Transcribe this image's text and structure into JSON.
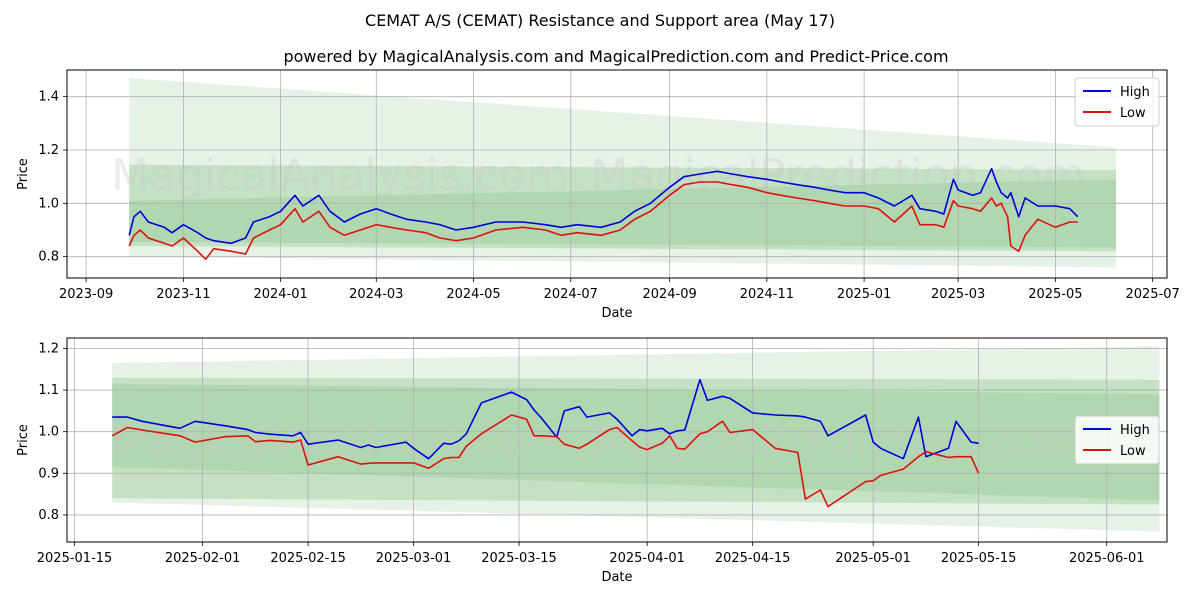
{
  "title": "CEMAT A/S (CEMAT) Resistance and Support area (May 17)",
  "subtitle": "powered by MagicalAnalysis.com and MagicalPrediction.com and Predict-Price.com",
  "watermark": {
    "left": "MagicalAnalysis.com",
    "right": "MagicalPrediction.com"
  },
  "colors": {
    "high": "#0000dd",
    "low": "#dd1111",
    "band_light": "#e3f0e3",
    "band_mid": "#b8dbb8",
    "band_dark": "#a3d0a3",
    "grid": "#b0b0b0"
  },
  "chart_data": [
    {
      "type": "line",
      "title": "",
      "xlabel": "Date",
      "ylabel": "Price",
      "xlim": [
        "2023-08-20",
        "2025-07-10"
      ],
      "ylim": [
        0.72,
        1.5
      ],
      "yticks": [
        0.8,
        1.0,
        1.2,
        1.4
      ],
      "ytick_labels": [
        "0.8",
        "1.0",
        "1.2",
        "1.4"
      ],
      "xticks": [
        "2023-09-01",
        "2023-11-01",
        "2024-01-01",
        "2024-03-01",
        "2024-05-01",
        "2024-07-01",
        "2024-09-01",
        "2024-11-01",
        "2025-01-01",
        "2025-03-01",
        "2025-05-01",
        "2025-07-01"
      ],
      "xtick_labels": [
        "2023-09",
        "2023-11",
        "2024-01",
        "2024-03",
        "2024-05",
        "2024-07",
        "2024-09",
        "2024-11",
        "2025-01",
        "2025-03",
        "2025-05",
        "2025-07"
      ],
      "legend": {
        "position": "top-right",
        "entries": [
          "High",
          "Low"
        ]
      },
      "bands": [
        {
          "x": [
            "2023-09-28",
            "2025-06-08"
          ],
          "upper": [
            1.47,
            1.21
          ],
          "lower": [
            0.8,
            0.76
          ],
          "shade": "light"
        },
        {
          "x": [
            "2023-09-28",
            "2025-06-08"
          ],
          "upper": [
            1.145,
            1.125
          ],
          "lower": [
            0.84,
            0.82
          ],
          "shade": "mid"
        },
        {
          "x": [
            "2023-09-28",
            "2025-06-08"
          ],
          "upper": [
            1.01,
            1.09
          ],
          "lower": [
            0.855,
            0.835
          ],
          "shade": "dark"
        }
      ],
      "series": [
        {
          "name": "High",
          "x": [
            "2023-09-28",
            "2023-10-01",
            "2023-10-05",
            "2023-10-10",
            "2023-10-20",
            "2023-10-25",
            "2023-11-01",
            "2023-11-10",
            "2023-11-15",
            "2023-11-20",
            "2023-12-01",
            "2023-12-10",
            "2023-12-15",
            "2023-12-25",
            "2024-01-01",
            "2024-01-10",
            "2024-01-15",
            "2024-01-25",
            "2024-02-01",
            "2024-02-10",
            "2024-02-20",
            "2024-03-01",
            "2024-03-10",
            "2024-03-20",
            "2024-04-01",
            "2024-04-10",
            "2024-04-20",
            "2024-05-01",
            "2024-05-15",
            "2024-06-01",
            "2024-06-15",
            "2024-06-25",
            "2024-07-05",
            "2024-07-20",
            "2024-08-01",
            "2024-08-10",
            "2024-08-20",
            "2024-09-01",
            "2024-09-10",
            "2024-09-20",
            "2024-10-01",
            "2024-10-10",
            "2024-10-20",
            "2024-11-01",
            "2024-11-10",
            "2024-11-20",
            "2024-12-01",
            "2024-12-10",
            "2024-12-20",
            "2025-01-01",
            "2025-01-10",
            "2025-01-20",
            "2025-01-31",
            "2025-02-05",
            "2025-02-15",
            "2025-02-20",
            "2025-02-26",
            "2025-03-01",
            "2025-03-10",
            "2025-03-15",
            "2025-03-22",
            "2025-03-25",
            "2025-03-28",
            "2025-04-01",
            "2025-04-03",
            "2025-04-08",
            "2025-04-12",
            "2025-04-20",
            "2025-05-01",
            "2025-05-10",
            "2025-05-15"
          ],
          "values": [
            0.88,
            0.95,
            0.97,
            0.93,
            0.91,
            0.89,
            0.92,
            0.89,
            0.87,
            0.86,
            0.85,
            0.87,
            0.93,
            0.95,
            0.97,
            1.03,
            0.99,
            1.03,
            0.97,
            0.93,
            0.96,
            0.98,
            0.96,
            0.94,
            0.93,
            0.92,
            0.9,
            0.91,
            0.93,
            0.93,
            0.92,
            0.91,
            0.92,
            0.91,
            0.93,
            0.97,
            1.0,
            1.06,
            1.1,
            1.11,
            1.12,
            1.11,
            1.1,
            1.09,
            1.08,
            1.07,
            1.06,
            1.05,
            1.04,
            1.04,
            1.02,
            0.99,
            1.03,
            0.98,
            0.97,
            0.96,
            1.09,
            1.05,
            1.03,
            1.04,
            1.13,
            1.08,
            1.04,
            1.02,
            1.04,
            0.95,
            1.02,
            0.99,
            0.99,
            0.98,
            0.95
          ]
        },
        {
          "name": "Low",
          "x": [
            "2023-09-28",
            "2023-10-01",
            "2023-10-05",
            "2023-10-10",
            "2023-10-20",
            "2023-10-25",
            "2023-11-01",
            "2023-11-10",
            "2023-11-15",
            "2023-11-20",
            "2023-12-01",
            "2023-12-10",
            "2023-12-15",
            "2023-12-25",
            "2024-01-01",
            "2024-01-10",
            "2024-01-15",
            "2024-01-25",
            "2024-02-01",
            "2024-02-10",
            "2024-02-20",
            "2024-03-01",
            "2024-03-10",
            "2024-03-20",
            "2024-04-01",
            "2024-04-10",
            "2024-04-20",
            "2024-05-01",
            "2024-05-15",
            "2024-06-01",
            "2024-06-15",
            "2024-06-25",
            "2024-07-05",
            "2024-07-20",
            "2024-08-01",
            "2024-08-10",
            "2024-08-20",
            "2024-09-01",
            "2024-09-10",
            "2024-09-20",
            "2024-10-01",
            "2024-10-10",
            "2024-10-20",
            "2024-11-01",
            "2024-11-10",
            "2024-11-20",
            "2024-12-01",
            "2024-12-10",
            "2024-12-20",
            "2025-01-01",
            "2025-01-10",
            "2025-01-20",
            "2025-01-31",
            "2025-02-05",
            "2025-02-15",
            "2025-02-20",
            "2025-02-26",
            "2025-03-01",
            "2025-03-10",
            "2025-03-15",
            "2025-03-22",
            "2025-03-25",
            "2025-03-28",
            "2025-04-01",
            "2025-04-03",
            "2025-04-08",
            "2025-04-12",
            "2025-04-20",
            "2025-05-01",
            "2025-05-10",
            "2025-05-15"
          ],
          "values": [
            0.84,
            0.88,
            0.9,
            0.87,
            0.85,
            0.84,
            0.87,
            0.82,
            0.79,
            0.83,
            0.82,
            0.81,
            0.87,
            0.9,
            0.92,
            0.98,
            0.93,
            0.97,
            0.91,
            0.88,
            0.9,
            0.92,
            0.91,
            0.9,
            0.89,
            0.87,
            0.86,
            0.87,
            0.9,
            0.91,
            0.9,
            0.88,
            0.89,
            0.88,
            0.9,
            0.94,
            0.97,
            1.03,
            1.07,
            1.08,
            1.08,
            1.07,
            1.06,
            1.04,
            1.03,
            1.02,
            1.01,
            1.0,
            0.99,
            0.99,
            0.98,
            0.93,
            0.99,
            0.92,
            0.92,
            0.91,
            1.01,
            0.99,
            0.98,
            0.97,
            1.02,
            0.99,
            1.0,
            0.95,
            0.84,
            0.82,
            0.88,
            0.94,
            0.91,
            0.93,
            0.93
          ]
        }
      ]
    },
    {
      "type": "line",
      "title": "",
      "xlabel": "Date",
      "ylabel": "Price",
      "xlim": [
        "2025-01-14",
        "2025-06-09"
      ],
      "ylim": [
        0.735,
        1.225
      ],
      "yticks": [
        0.8,
        0.9,
        1.0,
        1.1,
        1.2
      ],
      "ytick_labels": [
        "0.8",
        "0.9",
        "1.0",
        "1.1",
        "1.2"
      ],
      "xticks": [
        "2025-01-15",
        "2025-02-01",
        "2025-02-15",
        "2025-03-01",
        "2025-03-15",
        "2025-04-01",
        "2025-04-15",
        "2025-05-01",
        "2025-05-15",
        "2025-06-01"
      ],
      "xtick_labels": [
        "2025-01-15",
        "2025-02-01",
        "2025-02-15",
        "2025-03-01",
        "2025-03-15",
        "2025-04-01",
        "2025-04-15",
        "2025-05-01",
        "2025-05-15",
        "2025-06-01"
      ],
      "legend": {
        "position": "center-right",
        "entries": [
          "High",
          "Low"
        ]
      },
      "bands": [
        {
          "x": [
            "2025-01-20",
            "2025-06-08"
          ],
          "upper": [
            1.165,
            1.205
          ],
          "lower": [
            0.83,
            0.76
          ],
          "shade": "light"
        },
        {
          "x": [
            "2025-01-20",
            "2025-06-08"
          ],
          "upper": [
            1.13,
            1.125
          ],
          "lower": [
            0.84,
            0.825
          ],
          "shade": "mid"
        },
        {
          "x": [
            "2025-01-20",
            "2025-06-08"
          ],
          "upper": [
            1.115,
            1.09
          ],
          "lower": [
            0.915,
            0.835
          ],
          "shade": "dark"
        }
      ],
      "series": [
        {
          "name": "High",
          "x": [
            "2025-01-20",
            "2025-01-22",
            "2025-01-24",
            "2025-01-29",
            "2025-01-31",
            "2025-02-04",
            "2025-02-07",
            "2025-02-08",
            "2025-02-10",
            "2025-02-13",
            "2025-02-14",
            "2025-02-15",
            "2025-02-19",
            "2025-02-22",
            "2025-02-23",
            "2025-02-24",
            "2025-02-28",
            "2025-03-01",
            "2025-03-03",
            "2025-03-05",
            "2025-03-06",
            "2025-03-07",
            "2025-03-08",
            "2025-03-10",
            "2025-03-14",
            "2025-03-16",
            "2025-03-17",
            "2025-03-18",
            "2025-03-20",
            "2025-03-21",
            "2025-03-23",
            "2025-03-24",
            "2025-03-27",
            "2025-03-28",
            "2025-03-30",
            "2025-03-31",
            "2025-04-01",
            "2025-04-03",
            "2025-04-04",
            "2025-04-05",
            "2025-04-06",
            "2025-04-08",
            "2025-04-09",
            "2025-04-11",
            "2025-04-12",
            "2025-04-15",
            "2025-04-18",
            "2025-04-21",
            "2025-04-22",
            "2025-04-24",
            "2025-04-25",
            "2025-04-30",
            "2025-05-01",
            "2025-05-02",
            "2025-05-05",
            "2025-05-07",
            "2025-05-08",
            "2025-05-11",
            "2025-05-12",
            "2025-05-14",
            "2025-05-15"
          ],
          "values": [
            1.035,
            1.035,
            1.025,
            1.008,
            1.025,
            1.014,
            1.005,
            0.998,
            0.994,
            0.99,
            0.998,
            0.97,
            0.98,
            0.962,
            0.968,
            0.962,
            0.975,
            0.96,
            0.935,
            0.972,
            0.97,
            0.978,
            0.995,
            1.069,
            1.095,
            1.077,
            1.052,
            1.032,
            0.987,
            1.05,
            1.06,
            1.035,
            1.045,
            1.03,
            0.99,
            1.005,
            1.002,
            1.008,
            0.995,
            1.002,
            1.004,
            1.125,
            1.075,
            1.085,
            1.08,
            1.045,
            1.04,
            1.038,
            1.035,
            1.025,
            0.99,
            1.04,
            0.975,
            0.96,
            0.935,
            1.035,
            0.94,
            0.96,
            1.025,
            0.975,
            0.972
          ]
        },
        {
          "name": "Low",
          "x": [
            "2025-01-20",
            "2025-01-22",
            "2025-01-24",
            "2025-01-29",
            "2025-01-31",
            "2025-02-04",
            "2025-02-07",
            "2025-02-08",
            "2025-02-10",
            "2025-02-13",
            "2025-02-14",
            "2025-02-15",
            "2025-02-19",
            "2025-02-22",
            "2025-02-23",
            "2025-02-24",
            "2025-02-28",
            "2025-03-01",
            "2025-03-03",
            "2025-03-05",
            "2025-03-06",
            "2025-03-07",
            "2025-03-08",
            "2025-03-10",
            "2025-03-14",
            "2025-03-16",
            "2025-03-17",
            "2025-03-18",
            "2025-03-20",
            "2025-03-21",
            "2025-03-23",
            "2025-03-24",
            "2025-03-27",
            "2025-03-28",
            "2025-03-30",
            "2025-03-31",
            "2025-04-01",
            "2025-04-03",
            "2025-04-04",
            "2025-04-05",
            "2025-04-06",
            "2025-04-08",
            "2025-04-09",
            "2025-04-11",
            "2025-04-12",
            "2025-04-15",
            "2025-04-18",
            "2025-04-21",
            "2025-04-22",
            "2025-04-24",
            "2025-04-25",
            "2025-04-30",
            "2025-05-01",
            "2025-05-02",
            "2025-05-05",
            "2025-05-07",
            "2025-05-08",
            "2025-05-11",
            "2025-05-12",
            "2025-05-14",
            "2025-05-15"
          ],
          "values": [
            0.99,
            1.01,
            1.004,
            0.99,
            0.975,
            0.988,
            0.99,
            0.976,
            0.979,
            0.975,
            0.98,
            0.92,
            0.94,
            0.922,
            0.924,
            0.925,
            0.925,
            0.925,
            0.912,
            0.935,
            0.938,
            0.938,
            0.965,
            0.995,
            1.04,
            1.03,
            0.99,
            0.99,
            0.988,
            0.97,
            0.96,
            0.97,
            1.005,
            1.01,
            0.978,
            0.963,
            0.957,
            0.972,
            0.99,
            0.96,
            0.958,
            0.995,
            1.0,
            1.025,
            0.998,
            1.005,
            0.96,
            0.95,
            0.838,
            0.86,
            0.82,
            0.88,
            0.882,
            0.895,
            0.91,
            0.94,
            0.952,
            0.938,
            0.94,
            0.94,
            0.9
          ]
        }
      ]
    }
  ]
}
